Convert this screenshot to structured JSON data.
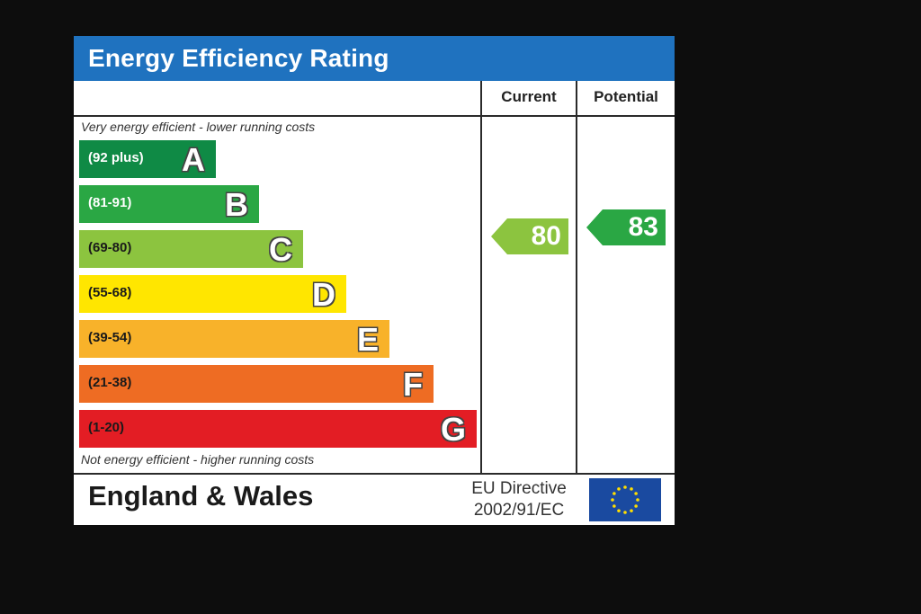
{
  "chart_data": {
    "type": "bar",
    "title": "Energy Efficiency Rating",
    "columns": [
      "Current",
      "Potential"
    ],
    "top_note": "Very energy efficient - lower running costs",
    "bottom_note": "Not energy efficient - higher running costs",
    "bands": [
      {
        "letter": "A",
        "range": "(92 plus)",
        "color": "#0f8a45",
        "text_color": "#ffffff"
      },
      {
        "letter": "B",
        "range": "(81-91)",
        "color": "#2aa744",
        "text_color": "#ffffff"
      },
      {
        "letter": "C",
        "range": "(69-80)",
        "color": "#8cc43f",
        "text_color": "#1a1a1a"
      },
      {
        "letter": "D",
        "range": "(55-68)",
        "color": "#ffe600",
        "text_color": "#1a1a1a"
      },
      {
        "letter": "E",
        "range": "(39-54)",
        "color": "#f8b22a",
        "text_color": "#1a1a1a"
      },
      {
        "letter": "F",
        "range": "(21-38)",
        "color": "#ee6c23",
        "text_color": "#1a1a1a"
      },
      {
        "letter": "G",
        "range": "(1-20)",
        "color": "#e31d24",
        "text_color": "#1a1a1a"
      }
    ],
    "current": {
      "value": 80,
      "band": "C",
      "color": "#8cc43f"
    },
    "potential": {
      "value": 83,
      "band": "B",
      "color": "#2aa744"
    }
  },
  "footer": {
    "region": "England & Wales",
    "directive_line1": "EU Directive",
    "directive_line2": "2002/91/EC",
    "flag_icon": "eu-flag-icon",
    "flag_color": "#1a4aa0",
    "star_color": "#ffde00"
  }
}
